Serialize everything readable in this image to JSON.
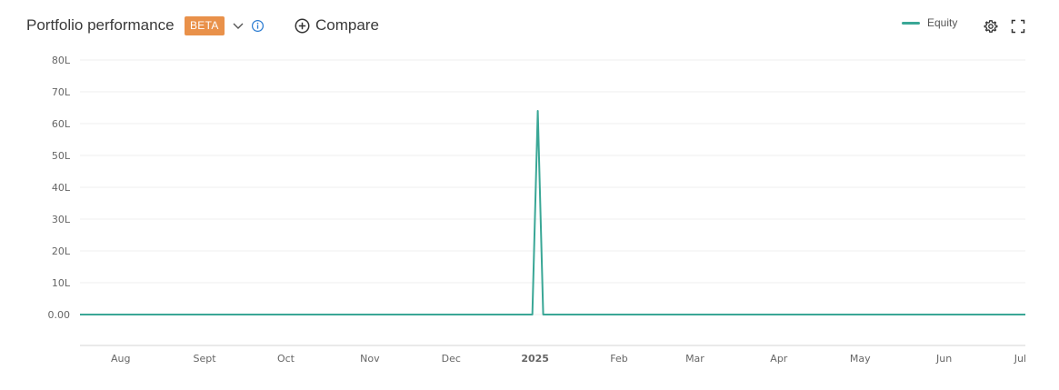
{
  "header": {
    "title": "Portfolio performance",
    "badge": "BETA",
    "compare_label": "Compare",
    "badge_color": "#e9914a"
  },
  "icons": {
    "dropdown": "chevron-down-icon",
    "info": "info-icon",
    "compare": "plus-circle-icon",
    "settings": "gear-icon",
    "fullscreen": "fullscreen-icon"
  },
  "legend": {
    "label": "Equity",
    "color": "#3aa796"
  },
  "chart_data": {
    "type": "line",
    "ylim": [
      0,
      80
    ],
    "y_ticks": [
      {
        "value": 80,
        "label": "80L"
      },
      {
        "value": 70,
        "label": "70L"
      },
      {
        "value": 60,
        "label": "60L"
      },
      {
        "value": 50,
        "label": "50L"
      },
      {
        "value": 40,
        "label": "40L"
      },
      {
        "value": 30,
        "label": "30L"
      },
      {
        "value": 20,
        "label": "20L"
      },
      {
        "value": 10,
        "label": "10L"
      },
      {
        "value": 0,
        "label": "0.00"
      }
    ],
    "xlim": [
      "2024-07-17",
      "2025-07-01"
    ],
    "x_ticks": [
      {
        "date": "2024-08-01",
        "label": "Aug",
        "bold": false
      },
      {
        "date": "2024-09-01",
        "label": "Sept",
        "bold": false
      },
      {
        "date": "2024-10-01",
        "label": "Oct",
        "bold": false
      },
      {
        "date": "2024-11-01",
        "label": "Nov",
        "bold": false
      },
      {
        "date": "2024-12-01",
        "label": "Dec",
        "bold": false
      },
      {
        "date": "2025-01-01",
        "label": "2025",
        "bold": true
      },
      {
        "date": "2025-02-01",
        "label": "Feb",
        "bold": false
      },
      {
        "date": "2025-03-01",
        "label": "Mar",
        "bold": false
      },
      {
        "date": "2025-04-01",
        "label": "Apr",
        "bold": false
      },
      {
        "date": "2025-05-01",
        "label": "May",
        "bold": false
      },
      {
        "date": "2025-06-01",
        "label": "Jun",
        "bold": false
      },
      {
        "date": "2025-07-01",
        "label": "Jul",
        "bold": false
      }
    ],
    "grid": true,
    "series": [
      {
        "name": "Equity",
        "color": "#3aa796",
        "points": [
          {
            "x": "2024-07-17",
            "y": 0
          },
          {
            "x": "2024-12-31",
            "y": 0
          },
          {
            "x": "2025-01-02",
            "y": 64
          },
          {
            "x": "2025-01-04",
            "y": 0
          },
          {
            "x": "2025-07-01",
            "y": 0
          }
        ]
      }
    ]
  }
}
